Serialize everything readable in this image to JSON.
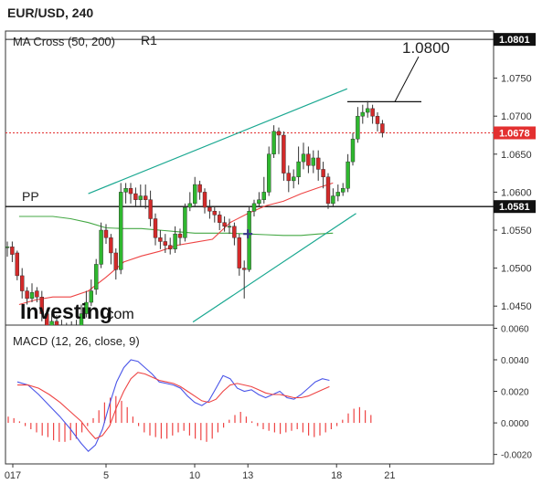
{
  "chart_title": "EUR/USD, 240",
  "indicator_label": "MA Cross (50, 200)",
  "macd_label": "MACD (12, 26, close, 9)",
  "annotations": {
    "r1": "R1",
    "pp": "PP",
    "target": "1.0800"
  },
  "logo": {
    "brand": "Investing",
    "suffix": ".com"
  },
  "colors": {
    "up_candle": "#2fb72f",
    "down_candle": "#d22a2a",
    "channel": "#1aa891",
    "ma50": "#ee4444",
    "ma200": "#44a844",
    "macd_line": "#4a55e8",
    "signal_line": "#ee4444",
    "histogram": "#ee4444",
    "current_price_tag": "#e33030",
    "level_tag": "#111111"
  },
  "chart_data": [
    {
      "type": "candlestick",
      "title": "EUR/USD, 240",
      "y_tick_labels": [
        "1.0450",
        "1.0500",
        "1.0550",
        "1.0600",
        "1.0650",
        "1.0700",
        "1.0750"
      ],
      "ylim": [
        1.0425,
        1.0812
      ],
      "x_tick_labels": [
        "017",
        "5",
        "10",
        "13",
        "18",
        "21"
      ],
      "price_tags": [
        {
          "label": "1.0801",
          "value": 1.0801,
          "kind": "level"
        },
        {
          "label": "1.0678",
          "value": 1.0678,
          "kind": "current"
        },
        {
          "label": "1.0581",
          "value": 1.0581,
          "kind": "level"
        }
      ],
      "levels": [
        {
          "name": "R1",
          "value": 1.0801
        },
        {
          "name": "PP",
          "value": 1.0581
        },
        {
          "name": "1.0800",
          "value": 1.0719
        }
      ],
      "channel_lines": [
        {
          "from": [
            4.0,
            1.0598
          ],
          "to": [
            18.6,
            1.0736
          ]
        },
        {
          "from": [
            9.9,
            1.0429
          ],
          "to": [
            19.1,
            1.0572
          ]
        }
      ],
      "candles": [
        [
          1.0528,
          1.0528,
          1.0535,
          1.0515
        ],
        [
          1.0528,
          1.0518,
          1.0535,
          1.0508
        ],
        [
          1.052,
          1.049,
          1.0523,
          1.0484
        ],
        [
          1.049,
          1.047,
          1.05,
          1.046
        ],
        [
          1.047,
          1.046,
          1.0475,
          1.0452
        ],
        [
          1.046,
          1.0468,
          1.048,
          1.0455
        ],
        [
          1.047,
          1.0462,
          1.0475,
          1.0455
        ],
        [
          1.0462,
          1.044,
          1.047,
          1.043
        ],
        [
          1.044,
          1.042,
          1.0445,
          1.041
        ],
        [
          1.042,
          1.043,
          1.044,
          1.0412
        ],
        [
          1.043,
          1.0425,
          1.0438,
          1.0415
        ],
        [
          1.0425,
          1.042,
          1.0432,
          1.041
        ],
        [
          1.042,
          1.0405,
          1.0428,
          1.0398
        ],
        [
          1.0405,
          1.0425,
          1.043,
          1.04
        ],
        [
          1.0425,
          1.0418,
          1.0432,
          1.041
        ],
        [
          1.0418,
          1.044,
          1.0452,
          1.0412
        ],
        [
          1.044,
          1.0455,
          1.047,
          1.0435
        ],
        [
          1.0455,
          1.047,
          1.0485,
          1.045
        ],
        [
          1.0472,
          1.0505,
          1.0512,
          1.0465
        ],
        [
          1.0505,
          1.055,
          1.056,
          1.05
        ],
        [
          1.055,
          1.054,
          1.0558,
          1.0532
        ],
        [
          1.054,
          1.052,
          1.0545,
          1.0505
        ],
        [
          1.052,
          1.0498,
          1.0526,
          1.0485
        ],
        [
          1.0498,
          1.06,
          1.0612,
          1.0492
        ],
        [
          1.06,
          1.0605,
          1.0612,
          1.0585
        ],
        [
          1.0605,
          1.0598,
          1.0612,
          1.0585
        ],
        [
          1.0598,
          1.059,
          1.0606,
          1.058
        ],
        [
          1.059,
          1.0595,
          1.061,
          1.0582
        ],
        [
          1.0595,
          1.059,
          1.061,
          1.0578
        ],
        [
          1.059,
          1.0565,
          1.0602,
          1.0555
        ],
        [
          1.0565,
          1.054,
          1.0572,
          1.053
        ],
        [
          1.054,
          1.0535,
          1.055,
          1.0525
        ],
        [
          1.0535,
          1.053,
          1.0545,
          1.052
        ],
        [
          1.053,
          1.0525,
          1.054,
          1.0518
        ],
        [
          1.0525,
          1.0545,
          1.0555,
          1.052
        ],
        [
          1.0545,
          1.054,
          1.0552,
          1.053
        ],
        [
          1.054,
          1.058,
          1.0585,
          1.0535
        ],
        [
          1.058,
          1.0585,
          1.06,
          1.0575
        ],
        [
          1.0585,
          1.061,
          1.062,
          1.058
        ],
        [
          1.061,
          1.06,
          1.0615,
          1.059
        ],
        [
          1.06,
          1.058,
          1.0605,
          1.0572
        ],
        [
          1.058,
          1.0575,
          1.059,
          1.0565
        ],
        [
          1.0575,
          1.057,
          1.058,
          1.056
        ],
        [
          1.057,
          1.056,
          1.0575,
          1.055
        ],
        [
          1.056,
          1.0555,
          1.0568,
          1.0548
        ],
        [
          1.0555,
          1.0555,
          1.0565,
          1.0545
        ],
        [
          1.0555,
          1.054,
          1.056,
          1.053
        ],
        [
          1.054,
          1.05,
          1.0545,
          1.049
        ],
        [
          1.05,
          1.0498,
          1.051,
          1.046
        ],
        [
          1.0498,
          1.0575,
          1.058,
          1.0495
        ],
        [
          1.0575,
          1.0585,
          1.059,
          1.0568
        ],
        [
          1.0585,
          1.059,
          1.06,
          1.058
        ],
        [
          1.059,
          1.06,
          1.062,
          1.0585
        ],
        [
          1.06,
          1.065,
          1.066,
          1.0595
        ],
        [
          1.065,
          1.068,
          1.0688,
          1.0645
        ],
        [
          1.068,
          1.0675,
          1.0685,
          1.065
        ],
        [
          1.0675,
          1.0625,
          1.068,
          1.0615
        ],
        [
          1.0625,
          1.0615,
          1.0635,
          1.06
        ],
        [
          1.0615,
          1.062,
          1.063,
          1.0605
        ],
        [
          1.062,
          1.064,
          1.066,
          1.061
        ],
        [
          1.064,
          1.065,
          1.0665,
          1.063
        ],
        [
          1.065,
          1.0635,
          1.066,
          1.0625
        ],
        [
          1.0635,
          1.0645,
          1.0655,
          1.0625
        ],
        [
          1.0645,
          1.063,
          1.0655,
          1.0615
        ],
        [
          1.063,
          1.062,
          1.064,
          1.0605
        ],
        [
          1.062,
          1.0585,
          1.0625,
          1.0578
        ],
        [
          1.0585,
          1.0595,
          1.0605,
          1.058
        ],
        [
          1.0595,
          1.06,
          1.061,
          1.0588
        ],
        [
          1.06,
          1.0605,
          1.0612,
          1.0595
        ],
        [
          1.0605,
          1.064,
          1.065,
          1.06
        ],
        [
          1.064,
          1.067,
          1.0678,
          1.0635
        ],
        [
          1.067,
          1.07,
          1.0712,
          1.0665
        ],
        [
          1.07,
          1.0705,
          1.0715,
          1.069
        ],
        [
          1.0705,
          1.071,
          1.072,
          1.0698
        ],
        [
          1.071,
          1.07,
          1.0715,
          1.069
        ],
        [
          1.07,
          1.069,
          1.0705,
          1.068
        ],
        [
          1.069,
          1.0678,
          1.0695,
          1.0672
        ]
      ],
      "ma50": [
        [
          0.1,
          1.0452
        ],
        [
          1.0,
          1.0458
        ],
        [
          2.0,
          1.0462
        ],
        [
          3.0,
          1.0462
        ],
        [
          4.0,
          1.047
        ],
        [
          5.0,
          1.0488
        ],
        [
          6.0,
          1.0508
        ],
        [
          7.0,
          1.0516
        ],
        [
          8.0,
          1.0522
        ],
        [
          9.0,
          1.053
        ],
        [
          10.0,
          1.0534
        ],
        [
          11.0,
          1.0538
        ],
        [
          12.0,
          1.056
        ],
        [
          13.0,
          1.0572
        ],
        [
          14.0,
          1.0582
        ],
        [
          15.0,
          1.0588
        ],
        [
          16.0,
          1.0598
        ],
        [
          17.0,
          1.0606
        ],
        [
          17.8,
          1.0612
        ]
      ],
      "ma200": [
        [
          0.1,
          1.0568
        ],
        [
          1.0,
          1.0568
        ],
        [
          2.0,
          1.0568
        ],
        [
          3.0,
          1.0565
        ],
        [
          4.0,
          1.056
        ],
        [
          5.0,
          1.0553
        ],
        [
          6.0,
          1.0552
        ],
        [
          7.0,
          1.0552
        ],
        [
          8.0,
          1.055
        ],
        [
          9.0,
          1.0548
        ],
        [
          10.0,
          1.0546
        ],
        [
          11.0,
          1.0546
        ],
        [
          12.0,
          1.0546
        ],
        [
          13.0,
          1.0545
        ],
        [
          14.0,
          1.0544
        ],
        [
          15.0,
          1.0543
        ],
        [
          16.0,
          1.0543
        ],
        [
          17.0,
          1.0545
        ],
        [
          17.8,
          1.0546
        ]
      ],
      "crosshair": [
        13.0,
        1.0545
      ]
    },
    {
      "type": "line",
      "title": "MACD (12, 26, close, 9)",
      "ylim": [
        -0.0026,
        0.0062
      ],
      "y_tick_labels": [
        "0.0060",
        "0.0040",
        "0.0020",
        "0.0000",
        "-0.0020"
      ],
      "series": [
        {
          "kind": "macd",
          "points": [
            [
              0.0,
              0.0026
            ],
            [
              0.6,
              0.0024
            ],
            [
              1.2,
              0.0018
            ],
            [
              1.8,
              0.0011
            ],
            [
              2.4,
              0.0004
            ],
            [
              3.0,
              -0.0004
            ],
            [
              3.6,
              -0.0013
            ],
            [
              4.0,
              -0.0018
            ],
            [
              4.4,
              -0.0014
            ],
            [
              4.8,
              -0.0004
            ],
            [
              5.2,
              0.0012
            ],
            [
              5.6,
              0.0026
            ],
            [
              6.0,
              0.0035
            ],
            [
              6.4,
              0.004
            ],
            [
              6.8,
              0.0039
            ],
            [
              7.2,
              0.0035
            ],
            [
              7.6,
              0.0031
            ],
            [
              8.0,
              0.0026
            ],
            [
              8.4,
              0.0025
            ],
            [
              8.8,
              0.0024
            ],
            [
              9.2,
              0.0022
            ],
            [
              9.6,
              0.0017
            ],
            [
              10.0,
              0.0013
            ],
            [
              10.4,
              0.0011
            ],
            [
              10.8,
              0.0014
            ],
            [
              11.2,
              0.0022
            ],
            [
              11.6,
              0.003
            ],
            [
              12.0,
              0.0028
            ],
            [
              12.4,
              0.0022
            ],
            [
              12.8,
              0.002
            ],
            [
              13.2,
              0.0021
            ],
            [
              13.6,
              0.0018
            ],
            [
              14.0,
              0.0016
            ],
            [
              14.4,
              0.0018
            ],
            [
              14.8,
              0.002
            ],
            [
              15.2,
              0.0016
            ],
            [
              15.6,
              0.0015
            ],
            [
              16.0,
              0.0018
            ],
            [
              16.4,
              0.0022
            ],
            [
              16.8,
              0.0026
            ],
            [
              17.2,
              0.0028
            ],
            [
              17.6,
              0.0027
            ]
          ]
        },
        {
          "kind": "signal",
          "points": [
            [
              0.0,
              0.0024
            ],
            [
              0.6,
              0.0024
            ],
            [
              1.2,
              0.0022
            ],
            [
              1.8,
              0.0018
            ],
            [
              2.4,
              0.0013
            ],
            [
              3.0,
              0.0007
            ],
            [
              3.6,
              0.0001
            ],
            [
              4.0,
              -0.0005
            ],
            [
              4.4,
              -0.001
            ],
            [
              4.8,
              -0.0008
            ],
            [
              5.2,
              -0.0002
            ],
            [
              5.6,
              0.001
            ],
            [
              6.0,
              0.002
            ],
            [
              6.4,
              0.0028
            ],
            [
              6.8,
              0.0032
            ],
            [
              7.2,
              0.0031
            ],
            [
              7.6,
              0.0029
            ],
            [
              8.0,
              0.0027
            ],
            [
              8.4,
              0.0026
            ],
            [
              8.8,
              0.0025
            ],
            [
              9.2,
              0.0023
            ],
            [
              9.6,
              0.002
            ],
            [
              10.0,
              0.0017
            ],
            [
              10.4,
              0.0014
            ],
            [
              10.8,
              0.0013
            ],
            [
              11.2,
              0.0015
            ],
            [
              11.6,
              0.002
            ],
            [
              12.0,
              0.0024
            ],
            [
              12.4,
              0.0025
            ],
            [
              12.8,
              0.0024
            ],
            [
              13.2,
              0.0023
            ],
            [
              13.6,
              0.0021
            ],
            [
              14.0,
              0.0019
            ],
            [
              14.4,
              0.0018
            ],
            [
              14.8,
              0.0018
            ],
            [
              15.2,
              0.0017
            ],
            [
              15.6,
              0.0016
            ],
            [
              16.0,
              0.0016
            ],
            [
              16.4,
              0.0017
            ],
            [
              16.8,
              0.0019
            ],
            [
              17.2,
              0.0021
            ],
            [
              17.6,
              0.0023
            ]
          ]
        }
      ],
      "histogram": [
        0.0004,
        0.0003,
        0.0001,
        -0.0002,
        -0.0004,
        -0.0006,
        -0.0008,
        -0.0009,
        -0.0011,
        -0.0012,
        -0.0012,
        -0.0011,
        -0.001,
        -0.0006,
        -0.0002,
        0.0003,
        0.0008,
        0.0013,
        0.0016,
        0.0017,
        0.0014,
        0.001,
        0.0004,
        -0.0002,
        -0.0006,
        -0.0008,
        -0.0009,
        -0.001,
        -0.001,
        -0.0008,
        -0.0006,
        -0.0005,
        -0.0008,
        -0.001,
        -0.0011,
        -0.0012,
        -0.001,
        -0.0006,
        -0.0003,
        0.0002,
        0.0005,
        0.0007,
        0.0004,
        0.0001,
        -0.0002,
        -0.0004,
        -0.0005,
        -0.0006,
        -0.0007,
        -0.0006,
        -0.0005,
        -0.0004,
        -0.0006,
        -0.0008,
        -0.0009,
        -0.0008,
        -0.0006,
        -0.0004,
        -0.0002,
        0.0002,
        0.0006,
        0.0009,
        0.001,
        0.0008,
        0.0005
      ]
    }
  ]
}
